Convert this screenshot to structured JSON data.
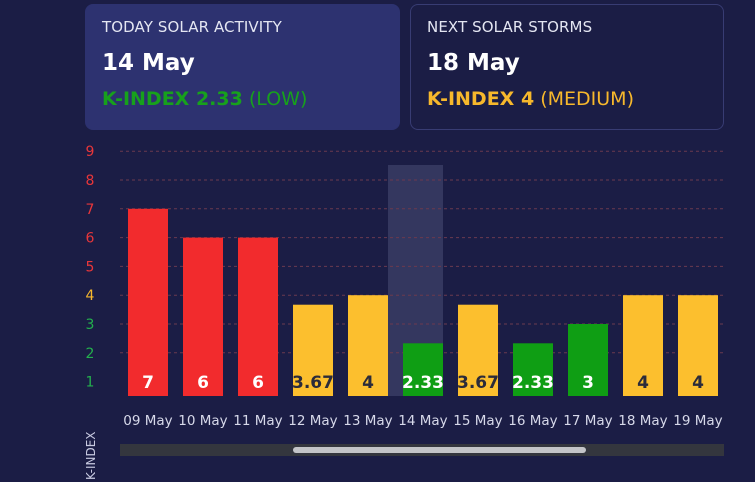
{
  "today_card": {
    "label": "TODAY SOLAR ACTIVITY",
    "date": "14 May",
    "k_text": "K-INDEX 2.33",
    "level": "(LOW)",
    "color": "#17a11c"
  },
  "next_card": {
    "label": "NEXT SOLAR STORMS",
    "date": "18 May",
    "k_text": "K-INDEX 4",
    "level": "(MEDIUM)",
    "color": "#f7b82c"
  },
  "colors": {
    "low": "#0f9e14",
    "medium": "#fcbf2e",
    "high": "#f22b2d",
    "axis_low": "#23b14d",
    "axis_medium": "#f7b82c",
    "axis_high": "#e8363a",
    "grid": "#6b3a4f",
    "highlight": "#34375f"
  },
  "chart_data": {
    "type": "bar",
    "ylabel": "K-INDEX",
    "ylim": [
      0.5,
      9
    ],
    "y_ticks": [
      "1",
      "2",
      "3",
      "4",
      "5",
      "6",
      "7",
      "8",
      "9"
    ],
    "categories": [
      "09 May",
      "10 May",
      "11 May",
      "12 May",
      "13 May",
      "14 May",
      "15 May",
      "16 May",
      "17 May",
      "18 May",
      "19 May"
    ],
    "values": [
      7,
      6,
      6,
      3.67,
      4,
      2.33,
      3.67,
      2.33,
      3,
      4,
      4
    ],
    "value_labels": [
      "7",
      "6",
      "6",
      "3.67",
      "4",
      "2.33",
      "3.67",
      "2.33",
      "3",
      "4",
      "4"
    ],
    "levels": [
      "high",
      "high",
      "high",
      "medium",
      "medium",
      "low",
      "medium",
      "low",
      "low",
      "medium",
      "medium"
    ],
    "highlighted_category": "14 May",
    "grid": true
  }
}
